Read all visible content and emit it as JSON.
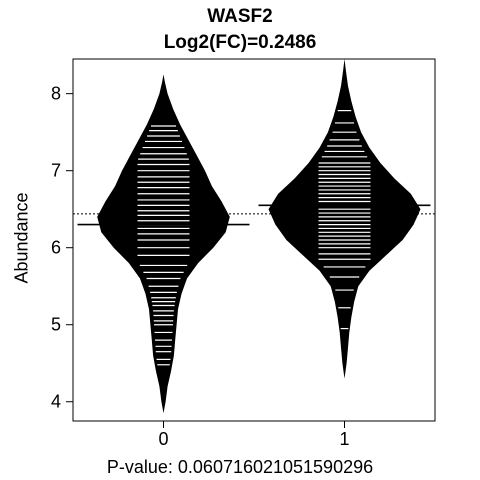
{
  "chart_data": {
    "type": "beanplot",
    "title": "WASF2",
    "subtitle": "Log2(FC)=0.2486",
    "ylabel": "Abundance",
    "xlabel": "P-value: 0.060716021051590296",
    "categories": [
      "0",
      "1"
    ],
    "yticks": [
      4,
      5,
      6,
      7,
      8
    ],
    "ylim": [
      3.75,
      8.45
    ],
    "overall_mean": 6.44,
    "groups": [
      {
        "name": "0",
        "mean": 6.3,
        "density": [
          [
            3.85,
            0.0
          ],
          [
            4.0,
            0.015
          ],
          [
            4.2,
            0.03
          ],
          [
            4.4,
            0.055
          ],
          [
            4.6,
            0.075
          ],
          [
            4.8,
            0.085
          ],
          [
            5.0,
            0.095
          ],
          [
            5.2,
            0.105
          ],
          [
            5.4,
            0.13
          ],
          [
            5.6,
            0.17
          ],
          [
            5.8,
            0.25
          ],
          [
            6.0,
            0.36
          ],
          [
            6.2,
            0.45
          ],
          [
            6.4,
            0.48
          ],
          [
            6.6,
            0.42
          ],
          [
            6.8,
            0.35
          ],
          [
            7.0,
            0.3
          ],
          [
            7.2,
            0.24
          ],
          [
            7.4,
            0.18
          ],
          [
            7.6,
            0.12
          ],
          [
            7.8,
            0.07
          ],
          [
            8.0,
            0.03
          ],
          [
            8.15,
            0.01
          ],
          [
            8.25,
            0.0
          ]
        ],
        "observations": [
          4.48,
          4.55,
          4.65,
          4.72,
          4.8,
          4.9,
          5.0,
          5.05,
          5.12,
          5.18,
          5.25,
          5.3,
          5.35,
          5.42,
          5.5,
          5.6,
          5.68,
          5.77,
          5.9,
          6.0,
          6.1,
          6.18,
          6.25,
          6.3,
          6.35,
          6.42,
          6.48,
          6.55,
          6.62,
          6.7,
          6.78,
          6.85,
          6.92,
          7.0,
          7.08,
          7.15,
          7.22,
          7.3,
          7.38,
          7.45,
          7.52,
          7.58
        ]
      },
      {
        "name": "1",
        "mean": 6.55,
        "density": [
          [
            4.3,
            0.0
          ],
          [
            4.5,
            0.015
          ],
          [
            4.7,
            0.025
          ],
          [
            4.9,
            0.035
          ],
          [
            5.1,
            0.05
          ],
          [
            5.3,
            0.07
          ],
          [
            5.5,
            0.1
          ],
          [
            5.7,
            0.18
          ],
          [
            5.9,
            0.3
          ],
          [
            6.1,
            0.42
          ],
          [
            6.3,
            0.5
          ],
          [
            6.5,
            0.55
          ],
          [
            6.7,
            0.48
          ],
          [
            6.9,
            0.36
          ],
          [
            7.1,
            0.26
          ],
          [
            7.3,
            0.18
          ],
          [
            7.5,
            0.12
          ],
          [
            7.7,
            0.08
          ],
          [
            7.9,
            0.05
          ],
          [
            8.1,
            0.025
          ],
          [
            8.3,
            0.01
          ],
          [
            8.45,
            0.0
          ]
        ],
        "observations": [
          4.95,
          5.22,
          5.45,
          5.62,
          5.75,
          5.85,
          5.92,
          6.0,
          6.05,
          6.1,
          6.15,
          6.2,
          6.25,
          6.3,
          6.35,
          6.4,
          6.45,
          6.5,
          6.55,
          6.6,
          6.65,
          6.7,
          6.75,
          6.8,
          6.85,
          6.9,
          6.95,
          7.0,
          7.05,
          7.1,
          7.18,
          7.25,
          7.32,
          7.4,
          7.5,
          7.62,
          7.78
        ]
      }
    ]
  }
}
